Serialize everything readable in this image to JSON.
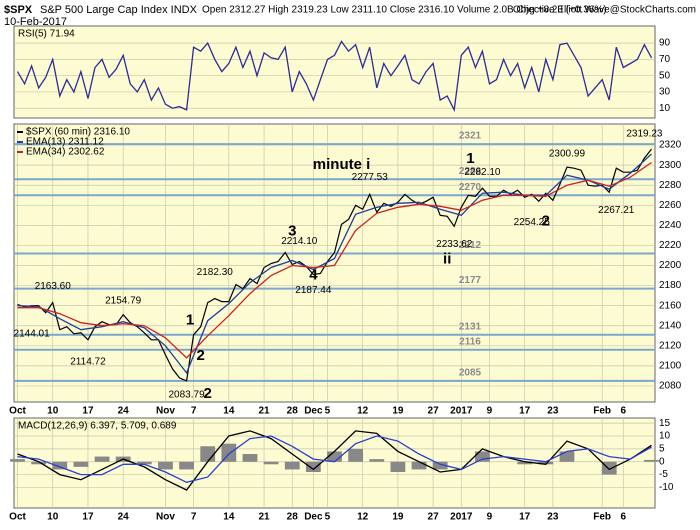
{
  "header": {
    "symbol": "$SPX",
    "name": "S&P 500 Large Cap Index INDX",
    "date": "10-Feb-2017",
    "quote": "Open 2312.27 High 2319.23 Low 2311.10 Close 2316.10 Volume 2.0B Chg +8.23 (+0.36%)",
    "watermark": "Objective Elliott Wave@StockCharts.com"
  },
  "chart_data": [
    {
      "type": "line",
      "title": "RSI(5) 71.94",
      "xlim": [
        -0.5,
        90.5
      ],
      "ylim": [
        -2,
        111
      ],
      "yticks": [
        10,
        30,
        50,
        70,
        90
      ],
      "grid": true,
      "x": [
        0,
        1,
        2,
        3,
        4,
        5,
        6,
        7,
        8,
        9,
        10,
        11,
        12,
        13,
        14,
        15,
        16,
        17,
        18,
        19,
        20,
        21,
        22,
        23,
        24,
        25,
        26,
        27,
        28,
        29,
        30,
        31,
        32,
        33,
        34,
        35,
        36,
        37,
        38,
        39,
        40,
        41,
        42,
        43,
        44,
        45,
        46,
        47,
        48,
        49,
        50,
        51,
        52,
        53,
        54,
        55,
        56,
        57,
        58,
        59,
        60,
        61,
        62,
        63,
        64,
        65,
        66,
        67,
        68,
        69,
        70,
        71,
        72,
        73,
        74,
        75,
        76,
        77,
        78,
        79,
        80,
        81,
        82,
        83,
        84,
        85,
        86,
        87,
        88,
        89,
        90
      ],
      "series": [
        {
          "color": "#2b2b99",
          "values": [
            55,
            40,
            62,
            35,
            48,
            70,
            25,
            45,
            30,
            55,
            22,
            60,
            70,
            48,
            58,
            75,
            40,
            30,
            45,
            20,
            35,
            15,
            10,
            12,
            8,
            85,
            80,
            90,
            70,
            55,
            65,
            85,
            60,
            80,
            50,
            78,
            72,
            70,
            85,
            30,
            55,
            40,
            20,
            45,
            70,
            75,
            92,
            80,
            88,
            60,
            85,
            35,
            65,
            50,
            62,
            75,
            45,
            40,
            55,
            65,
            20,
            25,
            8,
            75,
            85,
            60,
            80,
            40,
            45,
            70,
            50,
            65,
            35,
            60,
            30,
            70,
            45,
            88,
            90,
            75,
            60,
            25,
            35,
            45,
            20,
            85,
            60,
            65,
            70,
            88,
            71.94
          ]
        }
      ]
    },
    {
      "type": "line",
      "xlim": [
        -0.5,
        90.5
      ],
      "ylim": [
        2064,
        2341
      ],
      "grid": true,
      "yticks": [
        2080,
        2100,
        2120,
        2140,
        2160,
        2180,
        2200,
        2220,
        2240,
        2260,
        2280,
        2300,
        2320
      ],
      "xticks": [
        {
          "value": 0,
          "label": "Oct"
        },
        {
          "value": 5,
          "label": "10"
        },
        {
          "value": 10,
          "label": "17"
        },
        {
          "value": 15,
          "label": "24"
        },
        {
          "value": 21,
          "label": "Nov"
        },
        {
          "value": 25,
          "label": "7"
        },
        {
          "value": 30,
          "label": "14"
        },
        {
          "value": 35,
          "label": "21"
        },
        {
          "value": 39,
          "label": "28"
        },
        {
          "value": 42,
          "label": "Dec"
        },
        {
          "value": 44,
          "label": "5"
        },
        {
          "value": 49,
          "label": "12"
        },
        {
          "value": 54,
          "label": "19"
        },
        {
          "value": 59,
          "label": "27"
        },
        {
          "value": 63,
          "label": "2017"
        },
        {
          "value": 67,
          "label": "9"
        },
        {
          "value": 72,
          "label": "17"
        },
        {
          "value": 76,
          "label": "23"
        },
        {
          "value": 83,
          "label": "Feb"
        },
        {
          "value": 86,
          "label": "6"
        }
      ],
      "levels": [
        2321,
        2286,
        2270,
        2212,
        2177,
        2131,
        2116,
        2085
      ],
      "level_color": "#7ba7cc",
      "x": [
        0,
        1,
        2,
        3,
        4,
        5,
        6,
        7,
        8,
        9,
        10,
        11,
        12,
        13,
        14,
        15,
        16,
        17,
        18,
        19,
        20,
        21,
        22,
        23,
        24,
        25,
        26,
        27,
        28,
        29,
        30,
        31,
        32,
        33,
        34,
        35,
        36,
        37,
        38,
        39,
        40,
        41,
        42,
        43,
        44,
        45,
        46,
        47,
        48,
        49,
        50,
        51,
        52,
        53,
        54,
        55,
        56,
        57,
        58,
        59,
        60,
        61,
        62,
        63,
        64,
        65,
        66,
        67,
        68,
        69,
        70,
        71,
        72,
        73,
        74,
        75,
        76,
        77,
        78,
        79,
        80,
        81,
        82,
        83,
        84,
        85,
        86,
        87,
        88,
        89,
        90
      ],
      "series": [
        {
          "name": "$SPX (60 min) 2316.10",
          "color": "#000000",
          "values": [
            2161,
            2159,
            2160,
            2160,
            2153,
            2163,
            2136,
            2139,
            2132,
            2133,
            2126,
            2139,
            2144,
            2141,
            2141,
            2151,
            2143,
            2139,
            2133,
            2126,
            2126,
            2111,
            2097,
            2088,
            2085,
            2131,
            2139,
            2163,
            2167,
            2164,
            2164,
            2181,
            2177,
            2187,
            2182,
            2198,
            2202,
            2204,
            2213,
            2201,
            2204,
            2199,
            2191,
            2192,
            2204,
            2213,
            2241,
            2246,
            2260,
            2256,
            2271,
            2253,
            2262,
            2259,
            2263,
            2271,
            2265,
            2261,
            2264,
            2268,
            2250,
            2249,
            2239,
            2258,
            2270,
            2269,
            2277,
            2269,
            2269,
            2275,
            2271,
            2275,
            2268,
            2271,
            2264,
            2272,
            2265,
            2281,
            2298,
            2297,
            2295,
            2280,
            2279,
            2280,
            2273,
            2297,
            2293,
            2293,
            2295,
            2307,
            2316
          ]
        },
        {
          "name": "EMA(13) 2311.12",
          "color": "#1f3f9f",
          "x": [
            0,
            3,
            6,
            9,
            12,
            15,
            18,
            21,
            24,
            27,
            30,
            33,
            36,
            39,
            42,
            45,
            48,
            51,
            54,
            57,
            60,
            63,
            66,
            69,
            72,
            75,
            78,
            81,
            84,
            87,
            90
          ],
          "values": [
            2160,
            2159,
            2147,
            2136,
            2139,
            2144,
            2138,
            2120,
            2093,
            2145,
            2162,
            2183,
            2198,
            2205,
            2196,
            2207,
            2251,
            2258,
            2262,
            2263,
            2256,
            2250,
            2272,
            2273,
            2270,
            2270,
            2290,
            2285,
            2276,
            2292,
            2311.12
          ]
        },
        {
          "name": "EMA(34) 2302.62",
          "color": "#cc2222",
          "x": [
            0,
            3,
            6,
            9,
            12,
            15,
            18,
            21,
            24,
            27,
            30,
            33,
            36,
            39,
            42,
            45,
            48,
            51,
            54,
            57,
            60,
            63,
            66,
            69,
            72,
            75,
            78,
            81,
            84,
            87,
            90
          ],
          "values": [
            2158,
            2158,
            2152,
            2143,
            2140,
            2142,
            2140,
            2128,
            2108,
            2130,
            2150,
            2172,
            2190,
            2200,
            2198,
            2200,
            2235,
            2252,
            2258,
            2261,
            2259,
            2255,
            2265,
            2270,
            2270,
            2269,
            2280,
            2285,
            2279,
            2288,
            2302.62
          ]
        }
      ],
      "annotations": [
        {
          "text": "2144.01",
          "x": 2,
          "y": 2132,
          "color": "#000000"
        },
        {
          "text": "2163.60",
          "x": 5,
          "y": 2179,
          "color": "#000000"
        },
        {
          "text": "2114.72",
          "x": 10,
          "y": 2104,
          "color": "#000000"
        },
        {
          "text": "2154.79",
          "x": 15,
          "y": 2165,
          "color": "#000000"
        },
        {
          "text": "2182.30",
          "x": 28,
          "y": 2193,
          "color": "#000000"
        },
        {
          "text": "2083.79",
          "x": 24,
          "y": 2071,
          "color": "#000000"
        },
        {
          "text": "2214.10",
          "x": 40,
          "y": 2224,
          "color": "#000000"
        },
        {
          "text": "2187.44",
          "x": 42,
          "y": 2175,
          "color": "#000000"
        },
        {
          "text": "2277.53",
          "x": 50,
          "y": 2288,
          "color": "#000000"
        },
        {
          "text": "2282.10",
          "x": 66,
          "y": 2293,
          "color": "#000000"
        },
        {
          "text": "2233.62",
          "x": 62,
          "y": 2221,
          "color": "#000000"
        },
        {
          "text": "2254.25",
          "x": 73,
          "y": 2243,
          "color": "#000000"
        },
        {
          "text": "2300.99",
          "x": 78,
          "y": 2311,
          "color": "#000000"
        },
        {
          "text": "2267.21",
          "x": 85,
          "y": 2255,
          "color": "#000000"
        },
        {
          "text": "2319.23",
          "x": 89,
          "y": 2331,
          "color": "#000000"
        }
      ],
      "waves": [
        {
          "text": "minute i",
          "x": 46,
          "y": 2300,
          "color": "#2e7d1e"
        },
        {
          "text": "1",
          "x": 64.3,
          "y": 2306,
          "color": "#e08a00"
        },
        {
          "text": "2",
          "x": 75,
          "y": 2244,
          "color": "#e08a00"
        },
        {
          "text": "3",
          "x": 39,
          "y": 2234,
          "color": "#e08a00"
        },
        {
          "text": "4",
          "x": 42,
          "y": 2190,
          "color": "#e08a00"
        },
        {
          "text": "1",
          "x": 24.5,
          "y": 2145,
          "color": "#e08a00"
        },
        {
          "text": "2",
          "x": 26,
          "y": 2110,
          "color": "#e08a00"
        },
        {
          "text": "2",
          "x": 27,
          "y": 2072,
          "color": "#1a2a9a"
        },
        {
          "text": "ii",
          "x": 61,
          "y": 2206,
          "color": "#2e7d1e"
        }
      ]
    },
    {
      "type": "line",
      "title": "MACD(12,26,9) 6.397, 5.709, 0.689",
      "xlim": [
        -0.5,
        90.5
      ],
      "ylim": [
        -18,
        17
      ],
      "grid": true,
      "yticks": [
        -10,
        -5,
        0,
        5,
        10,
        15
      ],
      "xticks": [
        {
          "value": 0,
          "label": "Oct"
        },
        {
          "value": 5,
          "label": "10"
        },
        {
          "value": 10,
          "label": "17"
        },
        {
          "value": 15,
          "label": "24"
        },
        {
          "value": 21,
          "label": "Nov"
        },
        {
          "value": 25,
          "label": "7"
        },
        {
          "value": 30,
          "label": "14"
        },
        {
          "value": 35,
          "label": "21"
        },
        {
          "value": 39,
          "label": "28"
        },
        {
          "value": 42,
          "label": "Dec"
        },
        {
          "value": 44,
          "label": "5"
        },
        {
          "value": 49,
          "label": "12"
        },
        {
          "value": 54,
          "label": "19"
        },
        {
          "value": 59,
          "label": "27"
        },
        {
          "value": 63,
          "label": "2017"
        },
        {
          "value": 67,
          "label": "9"
        },
        {
          "value": 72,
          "label": "17"
        },
        {
          "value": 76,
          "label": "23"
        },
        {
          "value": 83,
          "label": "Feb"
        },
        {
          "value": 86,
          "label": "6"
        }
      ],
      "x": [
        0,
        3,
        6,
        9,
        12,
        15,
        18,
        21,
        24,
        27,
        30,
        33,
        36,
        39,
        42,
        45,
        48,
        51,
        54,
        57,
        60,
        63,
        66,
        69,
        72,
        75,
        78,
        81,
        84,
        87,
        90
      ],
      "series": [
        {
          "type": "bar",
          "color": "#888888",
          "values": [
            1,
            -1,
            -3,
            -2,
            2,
            2,
            -1,
            -3,
            -3,
            6,
            7,
            3,
            -1,
            -3,
            -4,
            4,
            5,
            1,
            -4,
            -3,
            -3,
            0,
            4,
            0,
            -1,
            -1,
            4,
            0,
            -5,
            0,
            0.689
          ]
        },
        {
          "color": "#000000",
          "values": [
            3,
            0,
            -5,
            -7,
            -3,
            1,
            -2,
            -7,
            -11,
            0,
            10,
            12,
            9,
            3,
            -3,
            4,
            12,
            11,
            4,
            0,
            -4,
            -3,
            5,
            2,
            0,
            -1,
            8,
            5,
            -3,
            1,
            6.397
          ]
        },
        {
          "color": "#2b3fd0",
          "values": [
            2,
            1,
            -2,
            -5,
            -5,
            -1,
            -1,
            -4,
            -8,
            -6,
            3,
            9,
            10,
            6,
            1,
            0,
            7,
            10,
            8,
            3,
            -1,
            -3,
            1,
            2,
            1,
            0,
            4,
            5,
            2,
            1,
            5.709
          ]
        }
      ]
    }
  ]
}
